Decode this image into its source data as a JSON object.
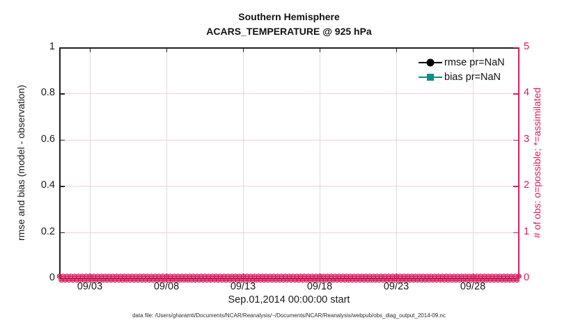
{
  "title": {
    "line1": "Southern Hemisphere",
    "line2": "ACARS_TEMPERATURE @ 925 hPa"
  },
  "left_axis": {
    "label": "rmse and bias (model - observation)",
    "ticks": [
      "0",
      "0.2",
      "0.4",
      "0.6",
      "0.8",
      "1"
    ],
    "tick_values": [
      0,
      0.2,
      0.4,
      0.6,
      0.8,
      1
    ],
    "lim": [
      0,
      1
    ],
    "color": "#1a1a1a"
  },
  "right_axis": {
    "label": "# of obs: o=possible; *=assimilated",
    "ticks": [
      "0",
      "1",
      "2",
      "3",
      "4",
      "5"
    ],
    "tick_values": [
      0,
      1,
      2,
      3,
      4,
      5
    ],
    "lim": [
      0,
      5
    ],
    "color": "#d81b60"
  },
  "x_axis": {
    "label": "Sep.01,2014 00:00:00 start",
    "ticks": [
      "09/03",
      "09/08",
      "09/13",
      "09/18",
      "09/23",
      "09/28"
    ],
    "tick_days": [
      2,
      7,
      12,
      17,
      22,
      27
    ],
    "range_days": [
      0,
      30
    ]
  },
  "legend": [
    {
      "label": "rmse pr=NaN",
      "color": "#000000",
      "marker": "circle"
    },
    {
      "label": "bias pr=NaN",
      "color": "#0f8c8c",
      "marker": "square"
    }
  ],
  "footer": {
    "text": "data file: /Users/gharamti/Documents/NCAR/Reanalysis/~/Documents/NCAR/Reanalysis/webpub/obs_diag_output_2014-09.nc"
  },
  "colors": {
    "pink": "#d81b60",
    "pink_grid": "#f6cfdd",
    "gray_grid": "#dcdcdc",
    "axis_black": "#1f1f1f",
    "teal": "#0f8c8c",
    "text": "#1a1a1a"
  },
  "chart_data": {
    "type": "line",
    "title": "Southern Hemisphere — ACARS_TEMPERATURE @ 925 hPa",
    "xlabel": "Sep.01,2014 00:00:00 start",
    "ylabel_left": "rmse and bias (model - observation)",
    "ylabel_right": "# of obs: o=possible; *=assimilated",
    "ylim_left": [
      0,
      1
    ],
    "ylim_right": [
      0,
      5
    ],
    "x_tick_labels": [
      "09/03",
      "09/08",
      "09/13",
      "09/18",
      "09/23",
      "09/28"
    ],
    "x_tick_days": [
      2,
      7,
      12,
      17,
      22,
      27
    ],
    "x_range_days": [
      0,
      30
    ],
    "grid": true,
    "legend_position": "top-right-inside",
    "series": [
      {
        "name": "rmse pr=NaN",
        "axis": "left",
        "marker": "filled-circle",
        "color": "#000000",
        "values": null,
        "note": "pr=NaN - no curve drawn"
      },
      {
        "name": "bias pr=NaN",
        "axis": "left",
        "marker": "filled-square",
        "color": "#0f8c8c",
        "values": null,
        "note": "pr=NaN - no curve drawn"
      },
      {
        "name": "possible obs (o markers)",
        "axis": "right",
        "marker": "o",
        "color": "#d81b60",
        "n_points": 121,
        "constant_value": 0,
        "note": "dense row of circle markers at y=0 across full month"
      },
      {
        "name": "assimilated obs (* markers)",
        "axis": "right",
        "marker": "*",
        "color": "#d81b60",
        "n_points": 120,
        "constant_value": 0,
        "note": "dense row of asterisk markers at y=0 across full month"
      }
    ]
  }
}
